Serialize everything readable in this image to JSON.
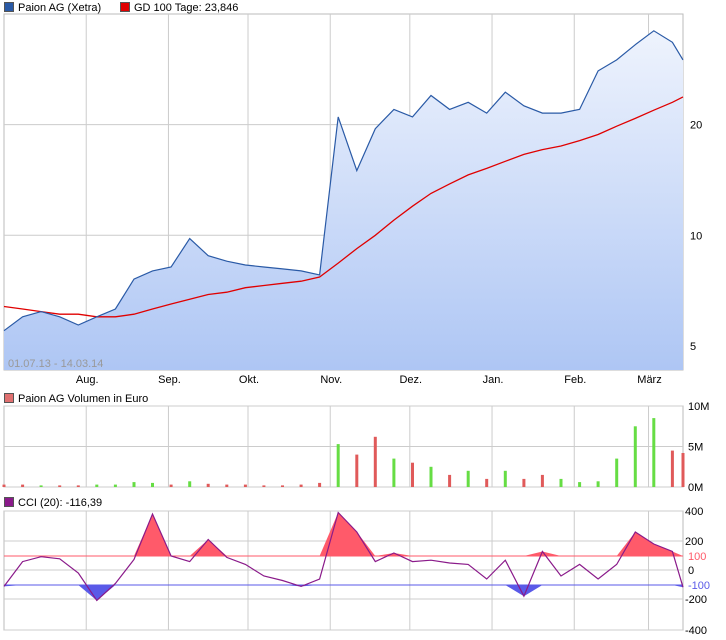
{
  "colors": {
    "price": "#2a5aa6",
    "gd100": "#e00000",
    "volume_up": "#66dd44",
    "volume_down": "#e05a5a",
    "cci_line": "#8a1a8a",
    "cci_over": "#ff5a6a",
    "cci_under": "#5a5ae8",
    "grid": "#cccccc"
  },
  "legend": {
    "price_label": "Paion AG (Xetra)",
    "gd_label": "GD 100 Tage: 23,846",
    "volume_label": "Paion AG Volumen in Euro",
    "cci_label": "CCI (20): -116,39"
  },
  "chart_data": [
    {
      "type": "area",
      "date_range_label": "01.07.13 - 14.03.14",
      "x_tick_labels": [
        "Aug.",
        "Sep.",
        "Okt.",
        "Nov.",
        "Dez.",
        "Jan.",
        "Feb.",
        "März"
      ],
      "y_tick_labels": [
        "5",
        "10",
        "20"
      ],
      "y_scale": "log",
      "ylim": [
        4.3,
        40
      ],
      "grid": true,
      "x": [
        "2013-07-01",
        "2013-07-08",
        "2013-07-15",
        "2013-07-22",
        "2013-07-29",
        "2013-08-05",
        "2013-08-12",
        "2013-08-19",
        "2013-08-26",
        "2013-09-02",
        "2013-09-09",
        "2013-09-16",
        "2013-09-23",
        "2013-09-30",
        "2013-10-07",
        "2013-10-14",
        "2013-10-21",
        "2013-10-28",
        "2013-11-04",
        "2013-11-11",
        "2013-11-18",
        "2013-11-25",
        "2013-12-02",
        "2013-12-09",
        "2013-12-16",
        "2013-12-23",
        "2013-12-30",
        "2014-01-06",
        "2014-01-13",
        "2014-01-20",
        "2014-01-27",
        "2014-02-03",
        "2014-02-10",
        "2014-02-17",
        "2014-02-24",
        "2014-03-03",
        "2014-03-10",
        "2014-03-14"
      ],
      "series": [
        {
          "name": "Paion AG (Xetra)",
          "values": [
            5.5,
            6.0,
            6.2,
            6.0,
            5.7,
            6.0,
            6.3,
            7.6,
            8.0,
            8.2,
            9.8,
            8.8,
            8.5,
            8.3,
            8.2,
            8.1,
            8.0,
            7.8,
            21.0,
            15.0,
            19.5,
            22.0,
            21.0,
            24.0,
            22.0,
            23.0,
            21.5,
            24.5,
            22.5,
            21.5,
            21.5,
            22.0,
            28.0,
            30.0,
            33.0,
            36.0,
            33.5,
            30.0
          ]
        },
        {
          "name": "GD 100 Tage",
          "values": [
            6.4,
            6.3,
            6.2,
            6.1,
            6.1,
            6.0,
            6.0,
            6.1,
            6.3,
            6.5,
            6.7,
            6.9,
            7.0,
            7.2,
            7.3,
            7.4,
            7.5,
            7.7,
            8.4,
            9.2,
            10.0,
            11.0,
            12.0,
            13.0,
            13.8,
            14.6,
            15.2,
            15.9,
            16.6,
            17.1,
            17.5,
            18.1,
            18.8,
            19.8,
            20.8,
            21.9,
            23.0,
            23.8
          ]
        }
      ]
    },
    {
      "type": "bar",
      "title": "Paion AG Volumen in Euro",
      "y_tick_labels": [
        "10M",
        "5M",
        "0M"
      ],
      "ylim": [
        0,
        10
      ],
      "unit": "Mio. Euro",
      "x": [
        "2013-07-01",
        "2013-07-08",
        "2013-07-15",
        "2013-07-22",
        "2013-07-29",
        "2013-08-05",
        "2013-08-12",
        "2013-08-19",
        "2013-08-26",
        "2013-09-02",
        "2013-09-09",
        "2013-09-16",
        "2013-09-23",
        "2013-09-30",
        "2013-10-07",
        "2013-10-14",
        "2013-10-21",
        "2013-10-28",
        "2013-11-04",
        "2013-11-11",
        "2013-11-18",
        "2013-11-25",
        "2013-12-02",
        "2013-12-09",
        "2013-12-16",
        "2013-12-23",
        "2013-12-30",
        "2014-01-06",
        "2014-01-13",
        "2014-01-20",
        "2014-01-27",
        "2014-02-03",
        "2014-02-10",
        "2014-02-17",
        "2014-02-24",
        "2014-03-03",
        "2014-03-10",
        "2014-03-14"
      ],
      "values": [
        0.3,
        0.3,
        0.2,
        0.2,
        0.2,
        0.3,
        0.3,
        0.6,
        0.5,
        0.3,
        0.7,
        0.4,
        0.3,
        0.3,
        0.2,
        0.2,
        0.3,
        0.5,
        5.3,
        4.0,
        6.2,
        3.5,
        3.0,
        2.5,
        1.5,
        2.0,
        1.0,
        2.0,
        1.0,
        1.5,
        1.0,
        0.6,
        0.7,
        3.5,
        7.5,
        8.5,
        4.5,
        4.2
      ],
      "direction": [
        "down",
        "down",
        "up",
        "down",
        "down",
        "up",
        "up",
        "up",
        "up",
        "down",
        "up",
        "down",
        "down",
        "down",
        "down",
        "down",
        "down",
        "down",
        "up",
        "down",
        "down",
        "up",
        "down",
        "up",
        "down",
        "up",
        "down",
        "up",
        "down",
        "down",
        "up",
        "up",
        "up",
        "up",
        "up",
        "up",
        "down",
        "down"
      ]
    },
    {
      "type": "line",
      "title": "CCI (20)",
      "y_tick_labels": [
        "400",
        "200",
        "100",
        "0",
        "-100",
        "-200",
        "-400"
      ],
      "ylim": [
        -400,
        400
      ],
      "thresholds": [
        100,
        -100
      ],
      "x": [
        "2013-07-01",
        "2013-07-08",
        "2013-07-15",
        "2013-07-22",
        "2013-07-29",
        "2013-08-05",
        "2013-08-12",
        "2013-08-19",
        "2013-08-26",
        "2013-09-02",
        "2013-09-09",
        "2013-09-16",
        "2013-09-23",
        "2013-09-30",
        "2013-10-07",
        "2013-10-14",
        "2013-10-21",
        "2013-10-28",
        "2013-11-04",
        "2013-11-11",
        "2013-11-18",
        "2013-11-25",
        "2013-12-02",
        "2013-12-09",
        "2013-12-16",
        "2013-12-23",
        "2013-12-30",
        "2014-01-06",
        "2014-01-13",
        "2014-01-20",
        "2014-01-27",
        "2014-02-03",
        "2014-02-10",
        "2014-02-17",
        "2014-02-24",
        "2014-03-03",
        "2014-03-10",
        "2014-03-14"
      ],
      "values": [
        -110,
        60,
        95,
        80,
        -20,
        -210,
        -90,
        75,
        380,
        100,
        60,
        210,
        90,
        40,
        -40,
        -70,
        -110,
        -60,
        390,
        260,
        60,
        120,
        60,
        70,
        50,
        40,
        -60,
        70,
        -180,
        130,
        -40,
        40,
        -60,
        40,
        260,
        180,
        130,
        -116
      ]
    }
  ]
}
